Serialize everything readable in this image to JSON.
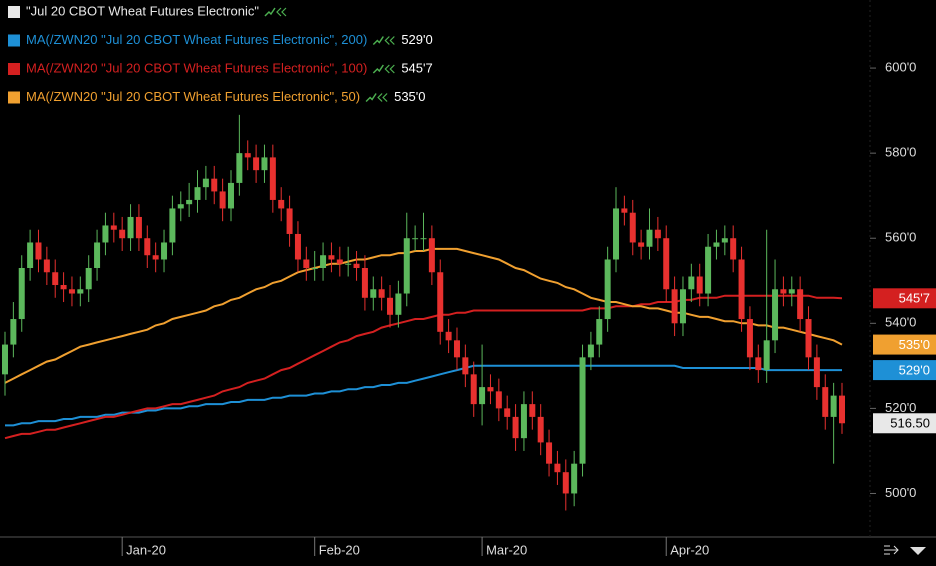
{
  "chart_data": {
    "type": "candlestick",
    "series_name": "\"Jul 20 CBOT Wheat Futures Electronic\"",
    "up_color": "#5cb85c",
    "down_color": "#e8312f",
    "label_color": "#e8e8e8",
    "last_value_label": "516.50",
    "categories": [
      null,
      null,
      null,
      null,
      null,
      null,
      null,
      null,
      null,
      null,
      null,
      null,
      null,
      null,
      "Jan-20",
      null,
      null,
      null,
      null,
      null,
      null,
      null,
      null,
      null,
      null,
      null,
      null,
      null,
      null,
      null,
      null,
      null,
      null,
      null,
      null,
      null,
      null,
      "Feb-20",
      null,
      null,
      null,
      null,
      null,
      null,
      null,
      null,
      null,
      null,
      null,
      null,
      null,
      null,
      null,
      null,
      null,
      null,
      null,
      "Mar-20",
      null,
      null,
      null,
      null,
      null,
      null,
      null,
      null,
      null,
      null,
      null,
      null,
      null,
      null,
      null,
      null,
      null,
      null,
      null,
      null,
      null,
      "Apr-20",
      null,
      null,
      null,
      null,
      null,
      null,
      null,
      null,
      null,
      null,
      null,
      null,
      null,
      null,
      null,
      null,
      null,
      null,
      null,
      null,
      null
    ],
    "open": [
      528,
      535,
      541,
      553,
      559,
      555,
      552,
      549,
      548,
      547,
      548,
      553,
      559,
      563,
      562,
      560,
      565,
      560,
      556,
      555,
      559,
      567,
      568,
      569,
      572,
      574,
      571,
      567,
      573,
      580,
      579,
      576,
      579,
      569,
      567,
      561,
      555,
      553,
      553,
      556,
      555,
      554,
      554,
      553,
      546,
      548,
      546,
      542,
      547,
      560,
      560,
      560,
      552,
      538,
      536,
      532,
      528,
      521,
      525,
      524,
      520,
      518,
      513,
      521,
      518,
      512,
      507,
      505,
      500,
      507,
      532,
      535,
      541,
      555,
      567,
      566,
      559,
      558,
      562,
      560,
      548,
      540,
      548,
      551,
      547,
      558,
      559,
      560,
      555,
      541,
      532,
      529,
      536,
      548,
      547,
      548,
      541,
      532,
      525,
      518,
      523
    ],
    "high": [
      538,
      545,
      556,
      562,
      562,
      558,
      555,
      552,
      551,
      551,
      556,
      562,
      566,
      566,
      565,
      568,
      568,
      563,
      559,
      562,
      570,
      571,
      573,
      576,
      577,
      577,
      574,
      576,
      589,
      583,
      582,
      582,
      582,
      572,
      570,
      564,
      558,
      557,
      559,
      559,
      558,
      558,
      557,
      556,
      551,
      551,
      549,
      550,
      566,
      563,
      566,
      563,
      555,
      541,
      539,
      535,
      531,
      535,
      528,
      527,
      523,
      521,
      524,
      524,
      521,
      515,
      510,
      508,
      510,
      535,
      538,
      544,
      558,
      572,
      570,
      569,
      562,
      567,
      565,
      563,
      551,
      551,
      554,
      554,
      561,
      562,
      563,
      563,
      558,
      544,
      535,
      562,
      555,
      551,
      551,
      551,
      544,
      535,
      528,
      526,
      526
    ],
    "low": [
      523,
      532,
      538,
      550,
      552,
      549,
      546,
      545,
      544,
      544,
      545,
      550,
      556,
      559,
      557,
      557,
      557,
      553,
      552,
      552,
      556,
      564,
      565,
      566,
      569,
      568,
      564,
      564,
      570,
      576,
      573,
      573,
      566,
      564,
      558,
      552,
      550,
      550,
      550,
      552,
      551,
      551,
      550,
      543,
      543,
      543,
      539,
      539,
      544,
      557,
      557,
      549,
      535,
      533,
      529,
      525,
      518,
      516,
      521,
      517,
      515,
      510,
      510,
      515,
      509,
      504,
      502,
      496,
      497,
      504,
      529,
      532,
      538,
      552,
      563,
      556,
      555,
      555,
      557,
      545,
      537,
      537,
      545,
      544,
      544,
      555,
      556,
      552,
      538,
      529,
      526,
      526,
      533,
      544,
      544,
      538,
      529,
      522,
      515,
      507,
      514
    ],
    "close": [
      535,
      541,
      553,
      559,
      555,
      552,
      549,
      548,
      547,
      548,
      553,
      559,
      563,
      562,
      560,
      565,
      560,
      556,
      555,
      559,
      567,
      568,
      569,
      572,
      574,
      571,
      567,
      573,
      580,
      579,
      576,
      579,
      569,
      567,
      561,
      555,
      553,
      553,
      556,
      555,
      554,
      554,
      553,
      546,
      548,
      546,
      542,
      547,
      560,
      560,
      560,
      552,
      538,
      536,
      532,
      528,
      521,
      525,
      524,
      520,
      518,
      513,
      521,
      518,
      512,
      507,
      505,
      500,
      507,
      532,
      535,
      541,
      555,
      567,
      566,
      559,
      558,
      562,
      560,
      548,
      540,
      548,
      551,
      547,
      558,
      559,
      560,
      555,
      541,
      532,
      529,
      536,
      548,
      547,
      548,
      541,
      532,
      525,
      518,
      523,
      516.5
    ],
    "overlays": [
      {
        "name": "MA(/ZWN20 \"Jul 20 CBOT Wheat Futures Electronic\", 200)",
        "color": "#1e90d6",
        "last_value_label": "529'0",
        "values": [
          516,
          516,
          516.5,
          516.5,
          517,
          517,
          517,
          517.5,
          517.5,
          518,
          518,
          518,
          518.5,
          518.5,
          519,
          519,
          519,
          519.5,
          519.5,
          520,
          520,
          520,
          520.5,
          520.5,
          521,
          521,
          521,
          521.5,
          521.5,
          522,
          522,
          522,
          522.5,
          522.5,
          523,
          523,
          523,
          523.5,
          523.5,
          524,
          524,
          524.5,
          524.5,
          525,
          525,
          525.5,
          525.5,
          526,
          526,
          526.5,
          527,
          527.5,
          528,
          528.5,
          529,
          529.5,
          530,
          530,
          530,
          530,
          530,
          530,
          530,
          530,
          530,
          530,
          530,
          530,
          530,
          530,
          530,
          530,
          530,
          530,
          530,
          530,
          530,
          530,
          530,
          530,
          530,
          529.5,
          529.5,
          529.5,
          529.5,
          529.5,
          529.5,
          529.5,
          529.5,
          529.5,
          529.5,
          529,
          529,
          529,
          529,
          529,
          529,
          529,
          529,
          529,
          529
        ]
      },
      {
        "name": "MA(/ZWN20 \"Jul 20 CBOT Wheat Futures Electronic\", 100)",
        "color": "#d42020",
        "last_value_label": "545'7",
        "values": [
          513,
          513.5,
          514,
          514,
          514.5,
          515,
          515,
          515.5,
          516,
          516.5,
          517,
          517.5,
          518,
          518,
          518.5,
          519,
          519.5,
          520,
          520,
          520.5,
          521,
          521,
          521.5,
          522,
          522.5,
          523,
          524,
          524.5,
          525,
          526,
          526.5,
          527,
          528,
          529,
          529.5,
          530.5,
          531.5,
          532.5,
          533.5,
          534.5,
          535.5,
          536,
          537,
          537.5,
          538,
          539,
          539.5,
          540,
          540.5,
          541,
          541,
          541.5,
          542,
          542,
          542.5,
          542.5,
          543,
          543,
          543,
          543,
          543,
          543,
          543,
          543,
          543,
          543,
          543,
          543,
          543,
          543,
          543.5,
          543.5,
          543.5,
          544,
          544,
          544,
          544.5,
          544.5,
          545,
          545,
          545,
          545.5,
          545.5,
          546,
          546,
          546,
          546.5,
          546.5,
          546.5,
          546.5,
          546.5,
          546.5,
          546.5,
          546.5,
          546.5,
          546.5,
          546.5,
          546,
          546,
          546,
          545.875
        ]
      },
      {
        "name": "MA(/ZWN20 \"Jul 20 CBOT Wheat Futures Electronic\", 50)",
        "color": "#f0a030",
        "last_value_label": "535'0",
        "values": [
          526,
          527,
          528,
          529,
          530,
          531,
          531.5,
          532.5,
          533.5,
          534.5,
          535,
          535.5,
          536,
          536.5,
          537,
          537.5,
          538,
          538.5,
          539.5,
          540,
          541,
          541.5,
          542,
          542.5,
          543,
          544,
          544.5,
          545.5,
          546,
          547,
          548,
          548.5,
          549.5,
          550,
          551,
          552,
          552.5,
          553,
          553.5,
          554,
          554,
          554.5,
          555,
          555,
          555.5,
          556,
          556,
          556.5,
          556.5,
          557,
          557,
          557.5,
          557.5,
          557.5,
          557.5,
          557,
          556.5,
          556,
          555.5,
          555,
          554,
          553,
          552.5,
          551.5,
          550.5,
          550,
          549.5,
          548.5,
          548,
          547,
          546,
          545.5,
          545,
          545,
          544.5,
          544,
          544,
          543.5,
          543.5,
          543,
          542.5,
          542.5,
          542,
          541.5,
          541.5,
          541,
          540.5,
          540.5,
          540,
          540,
          539.5,
          539.5,
          539,
          539,
          538.5,
          538,
          537.5,
          537,
          536.5,
          536,
          535
        ]
      }
    ],
    "ylim": [
      490,
      616
    ],
    "yticks": [
      {
        "value": 500,
        "label": "500'0"
      },
      {
        "value": 520,
        "label": "520'0"
      },
      {
        "value": 540,
        "label": "540'0"
      },
      {
        "value": 560,
        "label": "560'0"
      },
      {
        "value": 580,
        "label": "580'0"
      },
      {
        "value": 600,
        "label": "600'0"
      }
    ]
  }
}
